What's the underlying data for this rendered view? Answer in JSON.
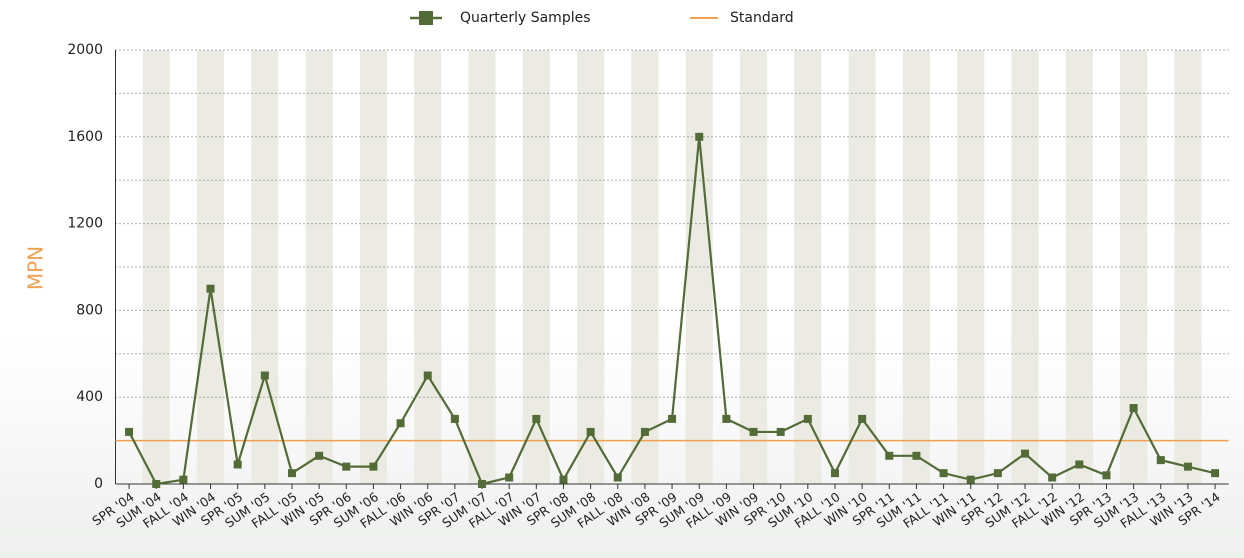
{
  "chart_data": {
    "type": "line",
    "y_label": "MPN",
    "y_label_color": "#f0a050",
    "categories": [
      "SPR '04",
      "SUM '04",
      "FALL '04",
      "WIN '04",
      "SPR '05",
      "SUM '05",
      "FALL '05",
      "WIN '05",
      "SPR '06",
      "SUM '06",
      "FALL '06",
      "WIN '06",
      "SPR '07",
      "SUM '07",
      "FALL '07",
      "WIN '07",
      "SPR '08",
      "SUM '08",
      "FALL '08",
      "WIN '08",
      "SPR '09",
      "SUM '09",
      "FALL '09",
      "WIN '09",
      "SPR '10",
      "SUM '10",
      "FALL '10",
      "WIN '10",
      "SPR '11",
      "SUM '11",
      "FALL '11",
      "WIN '11",
      "SPR '12",
      "SUM '12",
      "FALL '12",
      "WIN '12",
      "SPR '13",
      "SUM '13",
      "FALL '13",
      "WIN '13",
      "SPR '14"
    ],
    "series": [
      {
        "name": "Quarterly Samples",
        "color": "#536b37",
        "values": [
          240,
          0,
          20,
          900,
          90,
          500,
          50,
          130,
          80,
          80,
          280,
          500,
          300,
          0,
          30,
          300,
          20,
          240,
          30,
          240,
          300,
          1600,
          300,
          240,
          240,
          300,
          50,
          300,
          130,
          130,
          50,
          20,
          50,
          140,
          30,
          90,
          40,
          350,
          110,
          80,
          50
        ]
      }
    ],
    "reference_lines": [
      {
        "name": "Standard",
        "value": 200,
        "color": "#f0a050"
      }
    ],
    "ylim": [
      0,
      2000
    ],
    "yticks": [
      0,
      400,
      800,
      1200,
      1600,
      2000
    ],
    "minor_yticks": [
      200,
      600,
      1000,
      1400,
      1800
    ],
    "grid": true,
    "alternate_bands": true,
    "band_color": "#ebebe3",
    "legend": "top"
  }
}
